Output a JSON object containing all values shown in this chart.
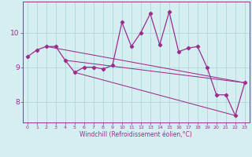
{
  "xlabel": "Windchill (Refroidissement éolien,°C)",
  "x_values": [
    0,
    1,
    2,
    3,
    4,
    5,
    6,
    7,
    8,
    9,
    10,
    11,
    12,
    13,
    14,
    15,
    16,
    17,
    18,
    19,
    20,
    21,
    22,
    23
  ],
  "y_values": [
    9.3,
    9.5,
    9.6,
    9.6,
    9.2,
    8.85,
    9.0,
    9.0,
    8.95,
    9.05,
    10.3,
    9.6,
    10.0,
    10.55,
    9.65,
    10.6,
    9.45,
    9.55,
    9.6,
    9.0,
    8.2,
    8.2,
    7.6,
    8.55
  ],
  "trend_lines": [
    {
      "x_start": 2,
      "y_start": 9.6,
      "x_end": 23,
      "y_end": 8.55
    },
    {
      "x_start": 4,
      "y_start": 9.2,
      "x_end": 23,
      "y_end": 8.55
    },
    {
      "x_start": 5,
      "y_start": 8.85,
      "x_end": 22,
      "y_end": 7.6
    }
  ],
  "line_color": "#9b2d8e",
  "bg_color": "#d5eef0",
  "grid_color": "#b0d8dc",
  "yticks": [
    8,
    9,
    10
  ],
  "ylim": [
    7.4,
    10.9
  ],
  "xlim": [
    -0.5,
    23.5
  ]
}
